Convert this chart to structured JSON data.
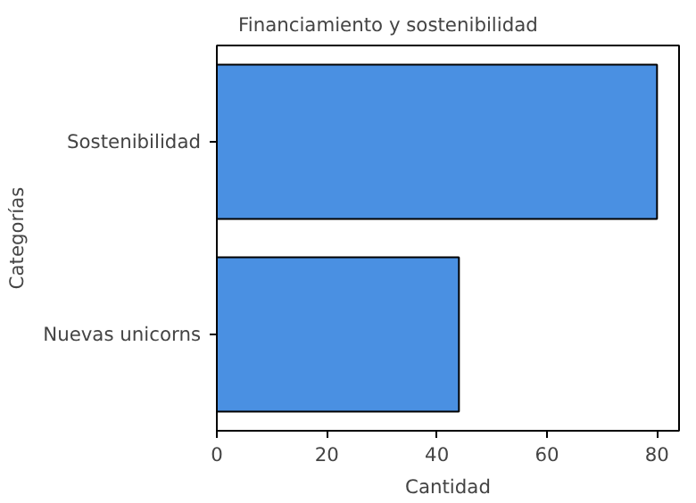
{
  "chart_data": {
    "type": "bar",
    "orientation": "horizontal",
    "title": "Financiamiento y sostenibilidad",
    "xlabel": "Cantidad",
    "ylabel": "Categorías",
    "categories": [
      "Sostenibilidad",
      "Nuevas unicorns"
    ],
    "values": [
      80,
      44
    ],
    "color": "#4a90e2",
    "xlim": [
      0,
      84
    ],
    "xticks": [
      0,
      20,
      40,
      60,
      80
    ],
    "grid": false
  }
}
